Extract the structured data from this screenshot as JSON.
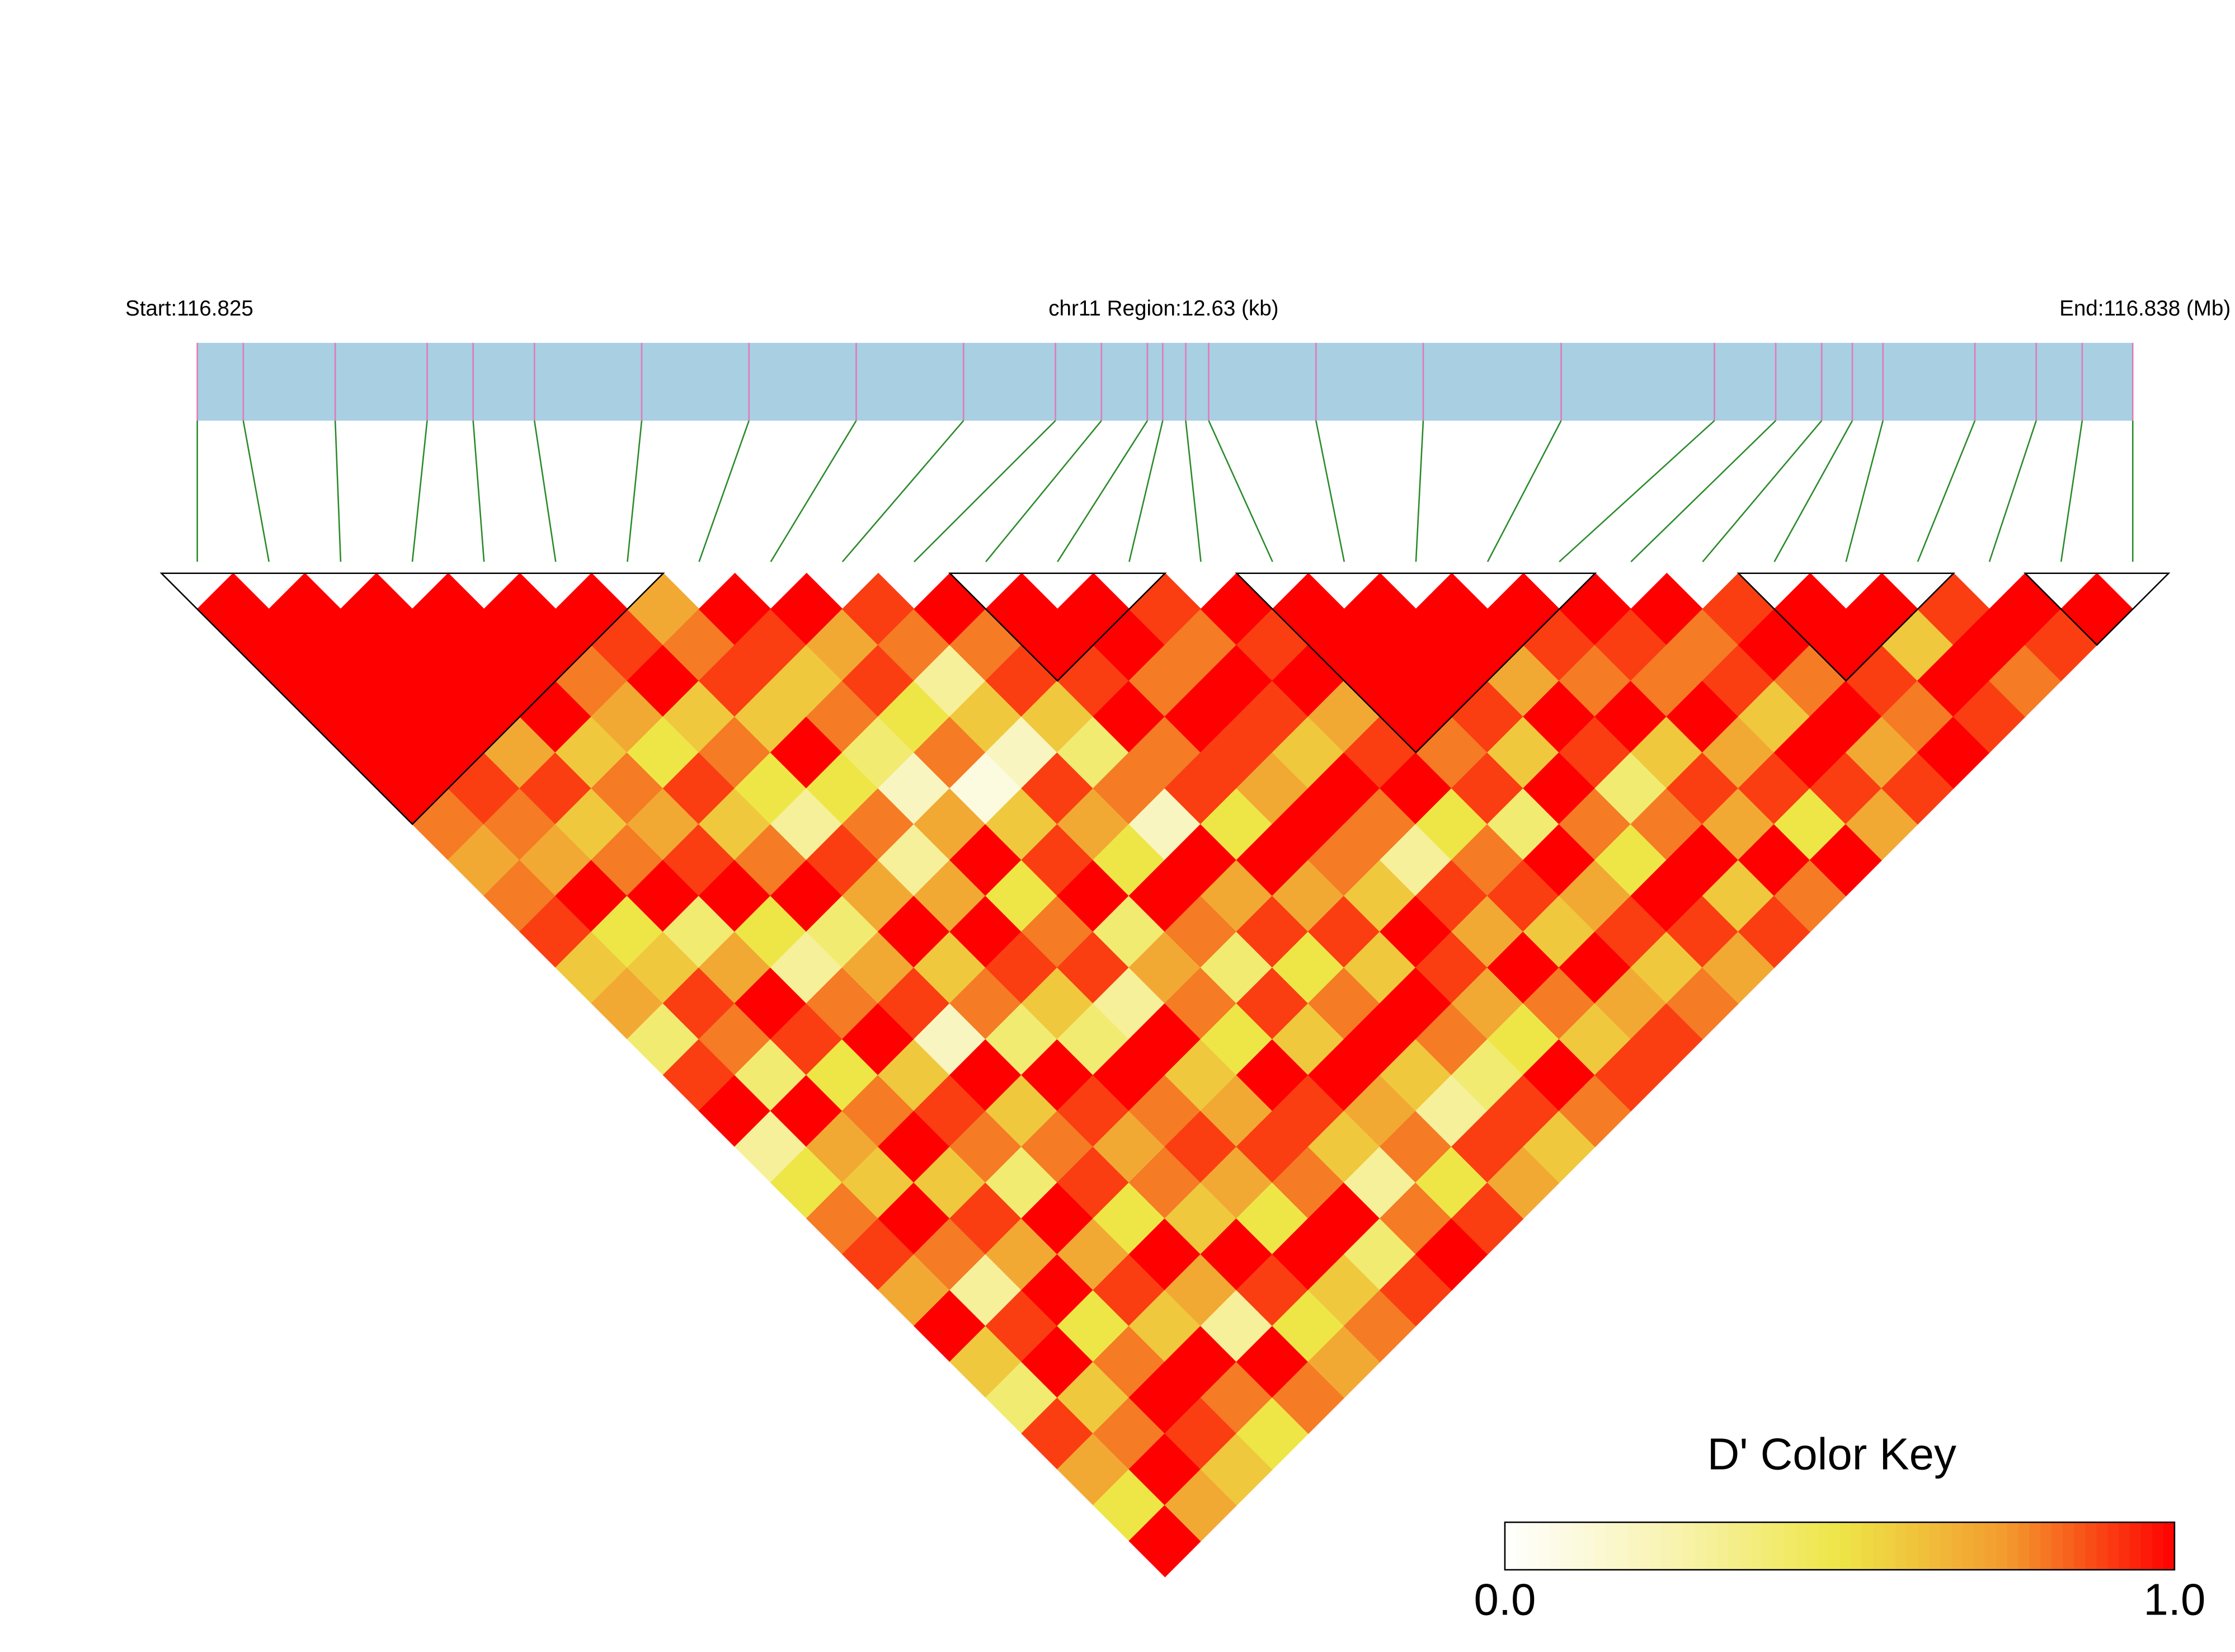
{
  "chart_data": {
    "type": "ld_heatmap",
    "start_label": "Start:116.825",
    "title": "chr11 Region:12.63 (kb)",
    "end_label": "End:116.838 (Mb)",
    "xlim": [
      0,
      12.63
    ],
    "positions": [
      0,
      0.3,
      0.9,
      1.5,
      1.8,
      2.2,
      2.9,
      3.6,
      4.3,
      5.0,
      5.6,
      5.9,
      6.2,
      6.3,
      6.45,
      6.6,
      7.3,
      8.0,
      8.9,
      9.9,
      10.3,
      10.6,
      10.8,
      11.0,
      11.6,
      12.0,
      12.3,
      12.63
    ],
    "bar_color": "#a8cfe2",
    "snp_color": "#e07ab8",
    "link_color": "#2a8a2a",
    "block_color": "#000000",
    "dprime": [
      [
        1,
        1,
        1,
        1,
        1,
        1,
        0.8,
        0.7,
        0.8,
        0.9,
        0.6,
        0.7,
        0.4,
        0.9,
        1,
        0.3,
        0.5,
        0.8,
        0.9,
        0.7,
        1,
        0.6,
        0.4,
        0.9,
        0.7,
        0.5,
        1
      ],
      [
        1,
        1,
        1,
        1,
        1,
        0.9,
        0.8,
        0.7,
        1,
        0.5,
        0.6,
        0.9,
        0.8,
        0.4,
        1,
        0.7,
        0.6,
        1,
        0.8,
        0.3,
        0.9,
        1,
        0.6,
        0.8,
        1,
        0.7
      ],
      [
        1,
        1,
        1,
        1,
        0.7,
        0.9,
        0.6,
        0.8,
        1,
        0.4,
        0.7,
        1,
        0.9,
        0.5,
        0.8,
        1,
        0.6,
        0.9,
        0.7,
        1,
        0.5,
        0.8,
        1,
        0.9,
        0.6
      ],
      [
        1,
        1,
        1,
        1,
        0.6,
        0.8,
        0.7,
        0.9,
        1,
        0.5,
        0.3,
        0.8,
        1,
        0.6,
        0.9,
        0.8,
        0.4,
        1,
        0.7,
        0.9,
        0.6,
        1,
        0.8,
        0.5
      ],
      [
        1,
        1,
        0.8,
        0.7,
        0.5,
        0.9,
        0.6,
        0.8,
        1,
        0.4,
        0.7,
        0.9,
        0.2,
        1,
        0.6,
        0.8,
        0.9,
        0.5,
        1,
        0.7,
        0.3,
        1,
        0.8
      ],
      [
        1,
        0.9,
        1,
        0.6,
        0.8,
        0.5,
        0.3,
        0.9,
        0.7,
        1,
        0.6,
        0.8,
        0.4,
        1,
        0.9,
        0.7,
        0.8,
        0.6,
        1,
        0.9,
        0.5,
        0.7
      ],
      [
        0.7,
        0.8,
        0.9,
        0.6,
        1,
        0.5,
        0.8,
        0.3,
        0.7,
        1,
        0.9,
        0.6,
        0.4,
        1,
        0.8,
        0.9,
        0.7,
        0.5,
        1,
        0.6,
        0.8
      ],
      [
        1,
        0.9,
        0.6,
        0.8,
        0.4,
        0.2,
        0.7,
        1,
        0.5,
        0.8,
        0.9,
        0.3,
        1,
        0.6,
        0.7,
        0.9,
        0.8,
        1,
        0.4,
        0.9
      ],
      [
        1,
        0.7,
        0.9,
        0.5,
        0.8,
        0.1,
        0.6,
        0.9,
        1,
        0.4,
        0.7,
        0.8,
        0.5,
        1,
        0.9,
        0.6,
        0.3,
        0.8,
        1
      ],
      [
        0.9,
        0.8,
        0.3,
        0.6,
        0.2,
        0.9,
        0.7,
        0.5,
        1,
        0.8,
        0.4,
        0.9,
        0.6,
        1,
        0.7,
        0.8,
        0.5,
        0.9
      ],
      [
        1,
        0.8,
        0.9,
        0.6,
        0.4,
        0.8,
        0.2,
        1,
        0.7,
        0.9,
        0.5,
        0.8,
        1,
        0.6,
        0.3,
        0.9,
        0.7
      ],
      [
        1,
        1,
        0.9,
        1,
        0.8,
        0.9,
        0.5,
        1,
        0.7,
        0.9,
        0.6,
        1,
        0.8,
        0.4,
        0.9,
        0.6
      ],
      [
        1,
        1,
        0.8,
        1,
        0.9,
        0.7,
        1,
        0.8,
        0.6,
        1,
        0.9,
        0.7,
        0.5,
        1,
        0.8
      ],
      [
        0.9,
        0.8,
        1,
        0.9,
        0.6,
        1,
        0.8,
        0.3,
        0.9,
        0.7,
        1,
        0.8,
        0.6,
        0.9
      ],
      [
        1,
        0.9,
        1,
        0.7,
        0.9,
        1,
        0.5,
        0.8,
        0.9,
        0.6,
        1,
        0.7,
        0.9
      ],
      [
        1,
        1,
        1,
        1,
        0.8,
        0.9,
        0.4,
        1,
        0.7,
        0.9,
        0.6,
        0.8
      ],
      [
        1,
        1,
        1,
        0.9,
        0.6,
        1,
        0.8,
        0.5,
        1,
        0.9,
        0.7
      ],
      [
        1,
        1,
        0.7,
        1,
        0.9,
        0.4,
        0.8,
        1,
        0.6,
        0.9
      ],
      [
        1,
        0.9,
        0.8,
        1,
        0.6,
        0.9,
        0.7,
        1,
        0.8
      ],
      [
        1,
        0.9,
        0.8,
        1,
        0.7,
        0.9,
        0.5,
        1
      ],
      [
        1,
        0.8,
        0.9,
        0.6,
        1,
        0.9,
        0.7
      ],
      [
        0.9,
        1,
        0.8,
        1,
        0.7,
        0.9
      ],
      [
        1,
        1,
        0.9,
        0.8,
        1
      ],
      [
        1,
        0.6,
        1,
        0.9
      ],
      [
        0.9,
        1,
        0.8
      ],
      [
        1,
        0.9
      ],
      [
        1
      ]
    ],
    "blocks": [
      [
        0,
        6
      ],
      [
        11,
        13
      ],
      [
        15,
        19
      ],
      [
        22,
        24
      ],
      [
        26,
        27
      ]
    ],
    "color_key": {
      "title": "D' Color Key",
      "colors": [
        "#ffffff",
        "#f8f3b0",
        "#eee647",
        "#f39a2e",
        "#ff0000"
      ],
      "lim": [
        0,
        1
      ],
      "ticks": [
        {
          "value": 0,
          "label": "0.0"
        },
        {
          "value": 1,
          "label": "1.0"
        }
      ]
    }
  }
}
